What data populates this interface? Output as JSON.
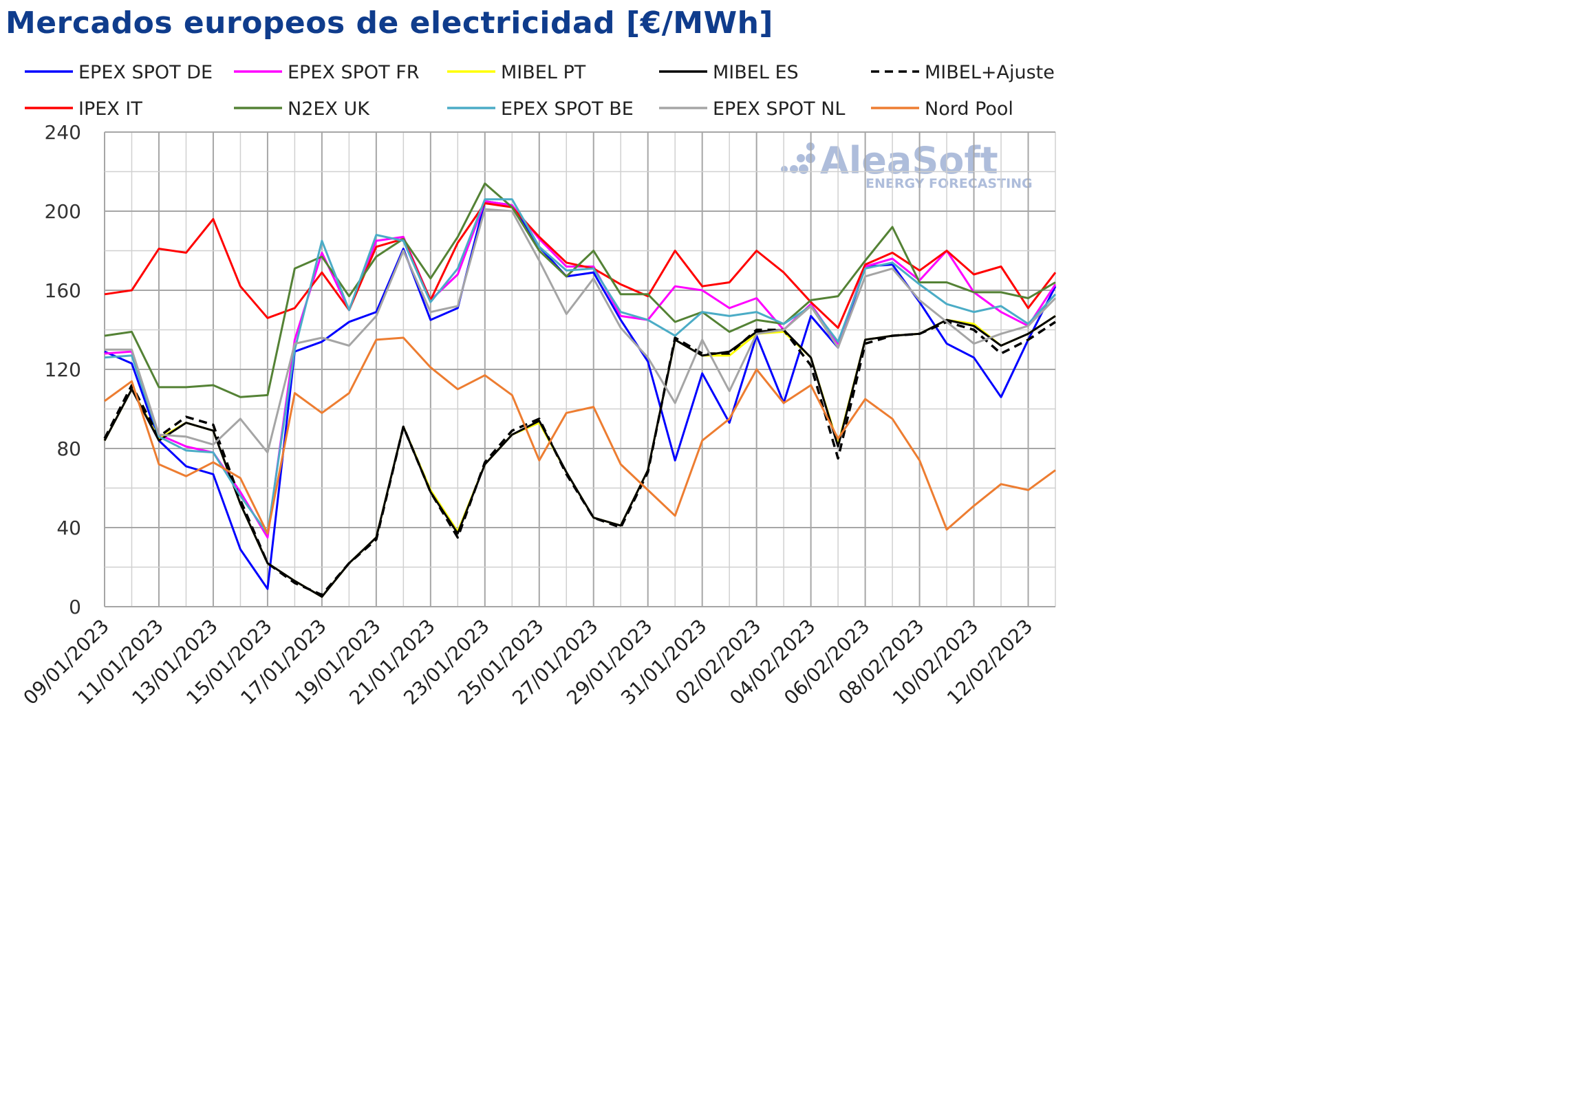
{
  "chart_data": {
    "type": "line",
    "title": "Mercados europeos de electricidad [€/MWh]",
    "x_tick_labels": [
      "09/01/2023",
      "11/01/2023",
      "13/01/2023",
      "15/01/2023",
      "17/01/2023",
      "19/01/2023",
      "21/01/2023",
      "23/01/2023",
      "25/01/2023",
      "27/01/2023",
      "29/01/2023",
      "31/01/2023",
      "02/02/2023",
      "04/02/2023",
      "06/02/2023",
      "08/02/2023",
      "10/02/2023",
      "12/02/2023"
    ],
    "y_ticks": [
      0,
      40,
      80,
      120,
      160,
      200,
      240
    ],
    "ylim": [
      0,
      240
    ],
    "grid": true,
    "legend_position": "top",
    "watermark": {
      "main": "AleaSoft",
      "sub": "ENERGY FORECASTING"
    },
    "x": [
      "09/01/2023",
      "10/01/2023",
      "11/01/2023",
      "12/01/2023",
      "13/01/2023",
      "14/01/2023",
      "15/01/2023",
      "16/01/2023",
      "17/01/2023",
      "18/01/2023",
      "19/01/2023",
      "20/01/2023",
      "21/01/2023",
      "22/01/2023",
      "23/01/2023",
      "24/01/2023",
      "25/01/2023",
      "26/01/2023",
      "27/01/2023",
      "28/01/2023",
      "29/01/2023",
      "30/01/2023",
      "31/01/2023",
      "01/02/2023",
      "02/02/2023",
      "03/02/2023",
      "04/02/2023",
      "05/02/2023",
      "06/02/2023",
      "07/02/2023",
      "08/02/2023",
      "09/02/2023",
      "10/02/2023",
      "11/02/2023",
      "12/02/2023",
      "13/02/2023"
    ],
    "series": [
      {
        "name": "EPEX SPOT DE",
        "color": "#0000ff",
        "dash": false,
        "values": [
          129,
          123,
          84,
          71,
          67,
          29,
          9,
          129,
          134,
          144,
          149,
          181,
          145,
          151,
          205,
          203,
          182,
          167,
          169,
          145,
          124,
          74,
          118,
          93,
          137,
          103,
          147,
          131,
          172,
          173,
          154,
          133,
          126,
          106,
          135,
          162
        ]
      },
      {
        "name": "EPEX SPOT FR",
        "color": "#ff00ff",
        "dash": false,
        "values": [
          128,
          129,
          87,
          81,
          78,
          58,
          35,
          135,
          179,
          150,
          185,
          187,
          155,
          168,
          205,
          203,
          186,
          172,
          172,
          147,
          145,
          162,
          160,
          151,
          156,
          140,
          153,
          133,
          172,
          176,
          165,
          180,
          159,
          149,
          142,
          163
        ]
      },
      {
        "name": "MIBEL PT",
        "color": "#ffff00",
        "dash": false,
        "values": [
          84,
          110,
          85,
          93,
          89,
          52,
          22,
          13,
          5,
          22,
          35,
          91,
          59,
          38,
          72,
          87,
          93,
          68,
          45,
          41,
          69,
          135,
          127,
          127,
          138,
          139,
          126,
          82,
          135,
          137,
          138,
          145,
          143,
          132,
          138,
          147
        ]
      },
      {
        "name": "MIBEL ES",
        "color": "#000000",
        "dash": false,
        "values": [
          84,
          110,
          84,
          93,
          89,
          52,
          22,
          13,
          5,
          22,
          35,
          91,
          58,
          37,
          72,
          87,
          94,
          68,
          45,
          41,
          69,
          135,
          127,
          129,
          139,
          140,
          126,
          81,
          135,
          137,
          138,
          145,
          142,
          132,
          138,
          147
        ]
      },
      {
        "name": "MIBEL+Ajuste",
        "color": "#000000",
        "dash": true,
        "values": [
          85,
          112,
          86,
          96,
          92,
          54,
          22,
          12,
          6,
          22,
          34,
          91,
          58,
          35,
          73,
          89,
          95,
          67,
          45,
          40,
          68,
          136,
          128,
          128,
          140,
          140,
          122,
          75,
          133,
          137,
          138,
          144,
          140,
          128,
          135,
          144
        ]
      },
      {
        "name": "IPEX IT",
        "color": "#ff0000",
        "dash": false,
        "values": [
          158,
          160,
          181,
          179,
          196,
          162,
          146,
          151,
          169,
          150,
          182,
          186,
          155,
          184,
          204,
          202,
          187,
          174,
          171,
          163,
          157,
          180,
          162,
          164,
          180,
          169,
          154,
          141,
          173,
          179,
          170,
          180,
          168,
          172,
          151,
          169
        ]
      },
      {
        "name": "N2EX UK",
        "color": "#548235",
        "dash": false,
        "values": [
          137,
          139,
          111,
          111,
          112,
          106,
          107,
          171,
          177,
          157,
          177,
          186,
          166,
          187,
          214,
          202,
          180,
          167,
          180,
          158,
          158,
          144,
          149,
          139,
          145,
          143,
          155,
          157,
          175,
          192,
          164,
          164,
          159,
          159,
          156,
          164
        ]
      },
      {
        "name": "EPEX SPOT BE",
        "color": "#4bacc6",
        "dash": false,
        "values": [
          126,
          127,
          86,
          79,
          78,
          56,
          37,
          130,
          185,
          150,
          188,
          185,
          154,
          171,
          206,
          206,
          182,
          170,
          171,
          149,
          145,
          137,
          149,
          147,
          149,
          143,
          152,
          134,
          171,
          174,
          163,
          153,
          149,
          152,
          143,
          158
        ]
      },
      {
        "name": "EPEX SPOT NL",
        "color": "#a5a5a5",
        "dash": false,
        "values": [
          130,
          130,
          87,
          86,
          82,
          95,
          78,
          133,
          136,
          132,
          147,
          180,
          149,
          152,
          201,
          200,
          175,
          148,
          166,
          141,
          126,
          103,
          135,
          109,
          138,
          140,
          152,
          131,
          167,
          171,
          155,
          144,
          133,
          138,
          142,
          156
        ]
      },
      {
        "name": "Nord Pool",
        "color": "#ed7d31",
        "dash": false,
        "values": [
          104,
          114,
          72,
          66,
          73,
          65,
          37,
          108,
          98,
          108,
          135,
          136,
          121,
          110,
          117,
          107,
          74,
          98,
          101,
          72,
          59,
          46,
          84,
          95,
          120,
          103,
          112,
          85,
          105,
          95,
          74,
          39,
          51,
          62,
          59,
          69
        ]
      }
    ]
  }
}
